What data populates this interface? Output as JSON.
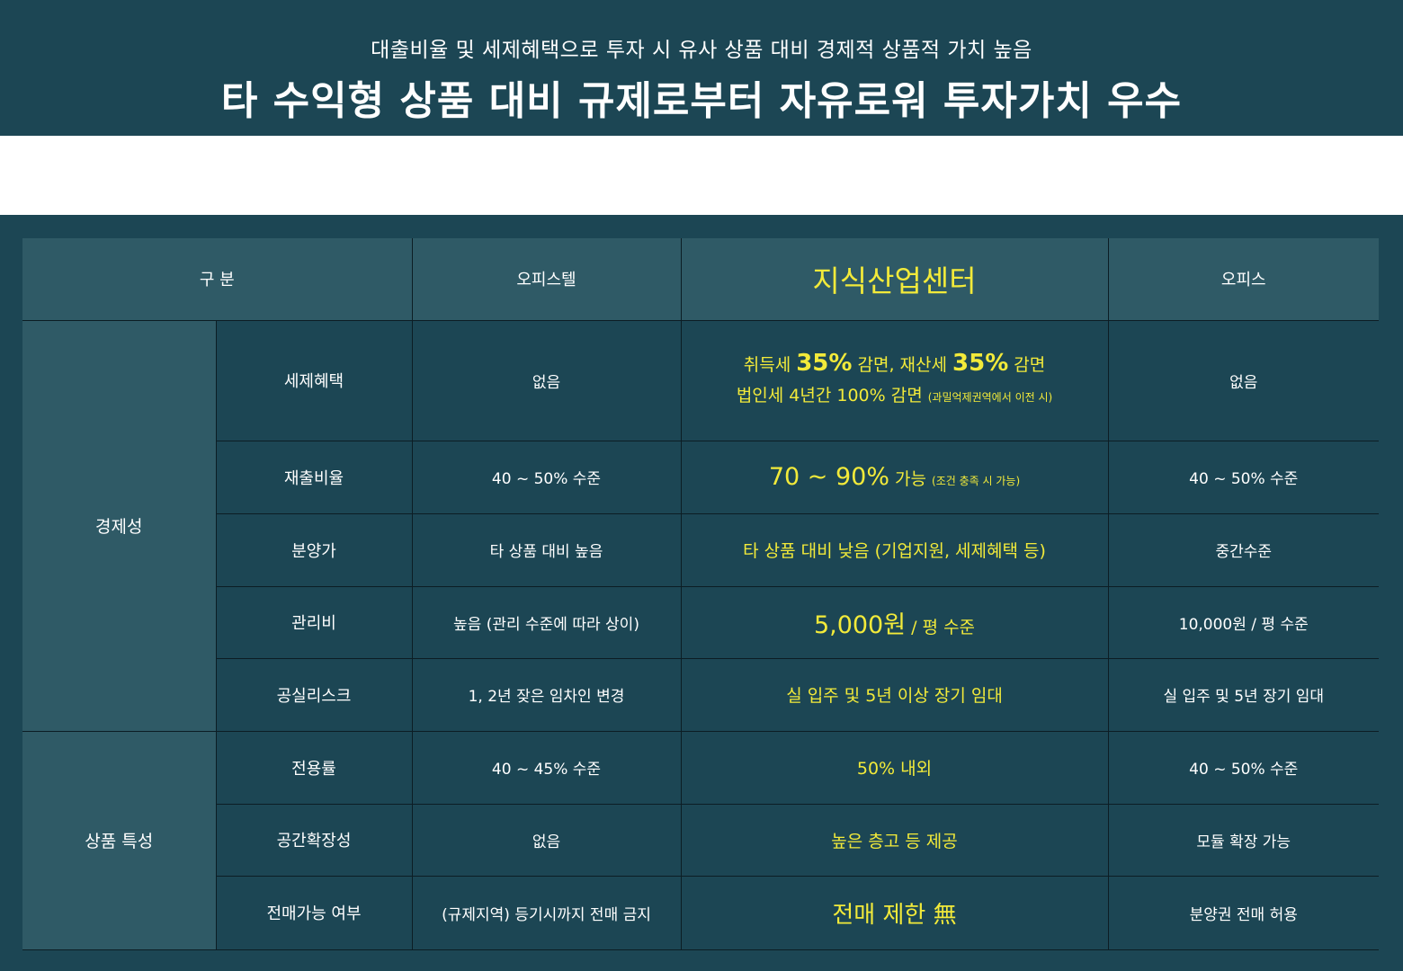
{
  "banner": {
    "subtitle": "대출비율 및 세제혜택으로 투자 시 유사 상품 대비 경제적 상품적 가치 높음",
    "title": "타 수익형 상품 대비 규제로부터 자유로워 투자가치 우수"
  },
  "colors": {
    "background": "#1c4654",
    "header_cell": "#2f5a66",
    "highlight_text": "#f2ea3a",
    "border": "#0c1d24"
  },
  "table": {
    "headers": {
      "category": "구 분",
      "officetel": "오피스텔",
      "knowledge_center": "지식산업센터",
      "office": "오피스"
    },
    "groups": {
      "economy": "경제성",
      "product": "상품 특성"
    },
    "rows": {
      "tax": {
        "item": "세제혜택",
        "officetel": "없음",
        "kc_l1_a": "취득세 ",
        "kc_l1_b": "35%",
        "kc_l1_c": " 감면, 재산세 ",
        "kc_l1_d": "35%",
        "kc_l1_e": " 감면",
        "kc_l2_a": "법인세 4년간 100% 감면 ",
        "kc_l2_b": "(과밀억제권역에서 이전 시)",
        "office": "없음"
      },
      "loan": {
        "item": "재출비율",
        "officetel": "40 ~ 50% 수준",
        "kc_a": "70 ~ 90%",
        "kc_b": " 가능 ",
        "kc_c": "(조건 충족 시 가능)",
        "office": "40 ~ 50% 수준"
      },
      "price": {
        "item": "분양가",
        "officetel": "타 상품 대비 높음",
        "kc": "타 상품 대비 낮음 (기업지원, 세제혜택 등)",
        "office": "중간수준"
      },
      "mgmt": {
        "item": "관리비",
        "officetel": "높음 (관리 수준에 따라 상이)",
        "kc_a": "5,000원",
        "kc_b": " / 평 수준",
        "office": "10,000원 / 평 수준"
      },
      "vacancy": {
        "item": "공실리스크",
        "officetel": "1, 2년 잦은 임차인 변경",
        "kc": "실 입주 및 5년 이상 장기 임대",
        "office": "실 입주 및 5년 장기 임대"
      },
      "usage": {
        "item": "전용률",
        "officetel": "40 ~ 45% 수준",
        "kc": "50% 내외",
        "office": "40 ~ 50% 수준"
      },
      "space": {
        "item": "공간확장성",
        "officetel": "없음",
        "kc": "높은 층고 등 제공",
        "office": "모듈 확장 가능"
      },
      "resale": {
        "item": "전매가능 여부",
        "officetel": "(규제지역) 등기시까지 전매 금지",
        "kc": "전매 제한 無",
        "office": "분양권 전매 허용"
      }
    }
  }
}
